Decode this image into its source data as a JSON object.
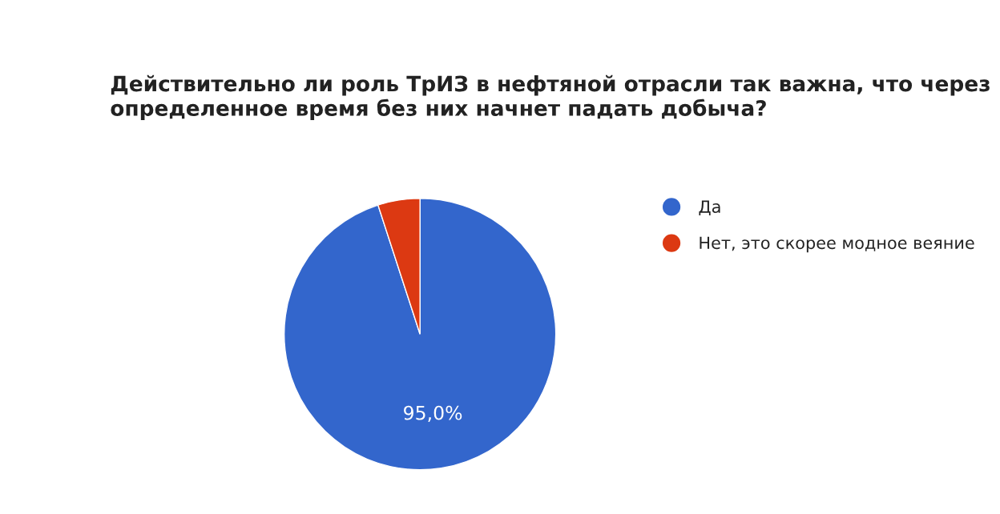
{
  "chart_data": {
    "type": "pie",
    "title": "Действительно ли роль ТрИЗ в нефтяной отрасли так важна, что через определенное время без них начнет падать добыча?",
    "categories": [
      "Да",
      "Нет, это скорее модное веяние"
    ],
    "values": [
      95.0,
      5.0
    ],
    "colors": [
      "#3366cc",
      "#dc3912"
    ],
    "value_labels": [
      "95,0%",
      null
    ],
    "legend": "top right"
  }
}
